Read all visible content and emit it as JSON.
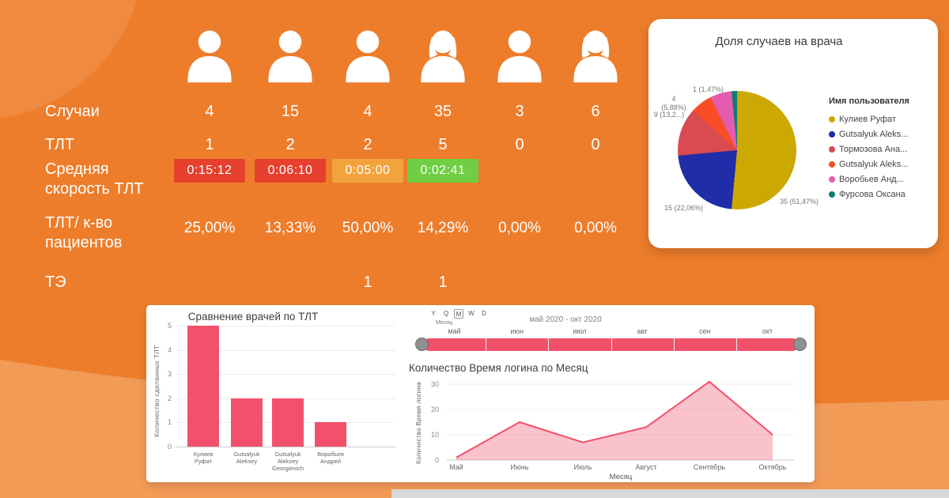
{
  "theme": {
    "background": "#ED7D2B",
    "background_light": "#F29B57",
    "card_background": "#FFFFFF",
    "accent": "#F2516B"
  },
  "stats": {
    "row_labels": {
      "cases": "Случаи",
      "tlt": "ТЛТ",
      "speed": "Средняя скорость ТЛТ",
      "ratio": "ТЛТ/ к-во пациентов",
      "te": "ТЭ"
    },
    "columns": [
      {
        "icon": "person-male",
        "cases": "4",
        "tlt": "1",
        "speed": "0:15:12",
        "speed_color": "#E7402E",
        "ratio": "25,00%",
        "te": ""
      },
      {
        "icon": "person-male",
        "cases": "15",
        "tlt": "2",
        "speed": "0:06:10",
        "speed_color": "#E7402E",
        "ratio": "13,33%",
        "te": ""
      },
      {
        "icon": "person-male",
        "cases": "4",
        "tlt": "2",
        "speed": "0:05:00",
        "speed_color": "#F2A33B",
        "ratio": "50,00%",
        "te": "1"
      },
      {
        "icon": "person-female",
        "cases": "35",
        "tlt": "5",
        "speed": "0:02:41",
        "speed_color": "#6FCE44",
        "ratio": "14,29%",
        "te": "1"
      },
      {
        "icon": "person-male",
        "cases": "3",
        "tlt": "0",
        "speed": "",
        "speed_color": "",
        "ratio": "0,00%",
        "te": ""
      },
      {
        "icon": "person-female",
        "cases": "6",
        "tlt": "0",
        "speed": "",
        "speed_color": "",
        "ratio": "0,00%",
        "te": ""
      }
    ]
  },
  "timeline": {
    "granularity_options": [
      "Y",
      "Q",
      "M",
      "W",
      "D"
    ],
    "granularity_selected": "M",
    "granularity_label": "Месяц",
    "range_label": "май 2020 - окт 2020",
    "months": [
      "май",
      "июн",
      "июл",
      "авг",
      "сен",
      "окт"
    ],
    "color": "#F2516B"
  },
  "chart_data": [
    {
      "type": "pie",
      "title": "Доля случаев на врача",
      "legend_title": "Имя пользователя",
      "legend_position": "right",
      "labels": [
        "Кулиев Руфат",
        "Gutsalyuk Aleks...",
        "Тормозова Ана...",
        "Gutsalyuk Aleks...",
        "Воробьев Анд...",
        "Фурсова Оксана"
      ],
      "values": [
        35,
        15,
        9,
        4,
        4,
        1
      ],
      "percent_labels": [
        "51,47%",
        "22,06%",
        "13,24%",
        "5,88%",
        "5,88%",
        "1,47%"
      ],
      "colors": [
        "#CCA900",
        "#202CA8",
        "#D94A51",
        "#F94D26",
        "#E45CB0",
        "#0E7C70"
      ],
      "callouts": [
        "4 (5,88%)",
        "1 (1,47%)",
        "9 (13,2...)",
        "15 (22,06%)",
        "35 (51,47%)"
      ]
    },
    {
      "type": "bar",
      "title": "Сравнение врачей по ТЛТ",
      "categories": [
        "Кулиев Руфат",
        "Gutsalyuk Aleksey",
        "Gutsalyuk Aleksey Georgievich",
        "Воробьев Андрей"
      ],
      "values": [
        5,
        2,
        2,
        1
      ],
      "ylabel": "Количество сделанных ТЛТ",
      "ylim": [
        0,
        5
      ],
      "grid": true,
      "color": "#F2516B"
    },
    {
      "type": "area",
      "title": "Количество Время логина по Месяц",
      "x": [
        "Май",
        "Июнь",
        "Июль",
        "Август",
        "Сентябрь",
        "Октябрь"
      ],
      "values": [
        1,
        15,
        7,
        13,
        31,
        10
      ],
      "xlabel": "Месяц",
      "ylabel": "Количество Время логина",
      "ylim": [
        0,
        32
      ],
      "yticks": [
        0,
        10,
        20,
        30
      ],
      "grid": true,
      "color": "#F2516B",
      "fill_opacity": 0.35
    }
  ]
}
